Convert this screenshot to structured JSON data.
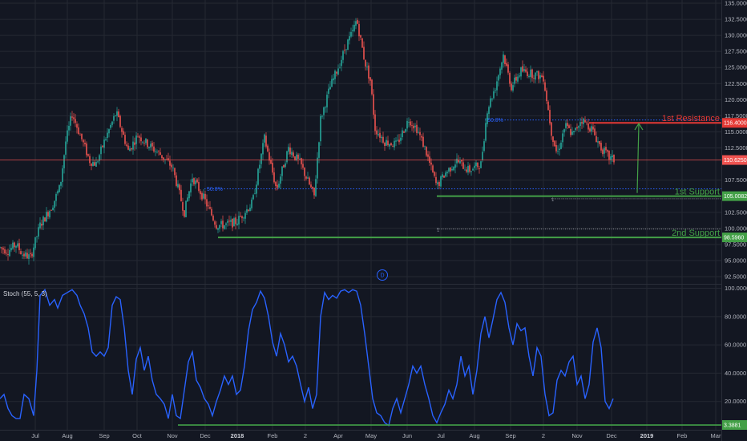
{
  "colors": {
    "background": "#131722",
    "grid": "#242833",
    "up": "#26a69a",
    "down": "#ef5350",
    "stoch": "#2962ff",
    "resistance": "#e53935",
    "support": "#43a047",
    "fib": "#2962ff",
    "current_price": "#ef5350"
  },
  "chart_data": [
    {
      "type": "candlestick",
      "title": "",
      "x_ticks": [
        "Jul",
        "Aug",
        "Sep",
        "Oct",
        "Nov",
        "Dec",
        "2018",
        "Feb",
        "2",
        "Apr",
        "May",
        "Jun",
        "Jul",
        "Aug",
        "Sep",
        "2",
        "Nov",
        "Dec",
        "2019",
        "Feb",
        "Mar"
      ],
      "y_ticks": [
        "135.0000",
        "132.5000",
        "130.0000",
        "127.5000",
        "125.0000",
        "122.5000",
        "120.0000",
        "117.5000",
        "115.0000",
        "112.5000",
        "107.5000",
        "102.5000",
        "100.0000",
        "97.5000",
        "95.0000",
        "92.5000"
      ],
      "ylim": [
        91.5,
        135.5
      ],
      "price_path": [
        {
          "t": 0,
          "p": 97.0
        },
        {
          "t": 10,
          "p": 96.5
        },
        {
          "t": 20,
          "p": 97.5
        },
        {
          "t": 28,
          "p": 96.0
        },
        {
          "t": 38,
          "p": 95.5
        },
        {
          "t": 50,
          "p": 100.5
        },
        {
          "t": 65,
          "p": 103.5
        },
        {
          "t": 75,
          "p": 106.5
        },
        {
          "t": 82,
          "p": 113.5
        },
        {
          "t": 90,
          "p": 117.8
        },
        {
          "t": 100,
          "p": 114.5
        },
        {
          "t": 112,
          "p": 110.5
        },
        {
          "t": 120,
          "p": 110.0
        },
        {
          "t": 130,
          "p": 113.5
        },
        {
          "t": 145,
          "p": 118.0
        },
        {
          "t": 160,
          "p": 112.0
        },
        {
          "t": 172,
          "p": 114.5
        },
        {
          "t": 185,
          "p": 113.0
        },
        {
          "t": 200,
          "p": 111.5
        },
        {
          "t": 215,
          "p": 109.5
        },
        {
          "t": 230,
          "p": 102.5
        },
        {
          "t": 240,
          "p": 108.0
        },
        {
          "t": 255,
          "p": 104.5
        },
        {
          "t": 270,
          "p": 100.5
        },
        {
          "t": 280,
          "p": 100.5
        },
        {
          "t": 295,
          "p": 101.0
        },
        {
          "t": 315,
          "p": 104.0
        },
        {
          "t": 330,
          "p": 114.0
        },
        {
          "t": 345,
          "p": 106.0
        },
        {
          "t": 360,
          "p": 112.5
        },
        {
          "t": 375,
          "p": 110.0
        },
        {
          "t": 392,
          "p": 105.0
        },
        {
          "t": 400,
          "p": 117.0
        },
        {
          "t": 412,
          "p": 122.0
        },
        {
          "t": 425,
          "p": 126.0
        },
        {
          "t": 432,
          "p": 128.5
        },
        {
          "t": 440,
          "p": 130.5
        },
        {
          "t": 445,
          "p": 132.5
        },
        {
          "t": 455,
          "p": 126.0
        },
        {
          "t": 462,
          "p": 123.0
        },
        {
          "t": 468,
          "p": 115.5
        },
        {
          "t": 480,
          "p": 113.5
        },
        {
          "t": 495,
          "p": 113.0
        },
        {
          "t": 510,
          "p": 117.0
        },
        {
          "t": 520,
          "p": 115.5
        },
        {
          "t": 530,
          "p": 112.5
        },
        {
          "t": 545,
          "p": 106.5
        },
        {
          "t": 555,
          "p": 108.5
        },
        {
          "t": 570,
          "p": 110.5
        },
        {
          "t": 585,
          "p": 109.0
        },
        {
          "t": 600,
          "p": 110.0
        },
        {
          "t": 608,
          "p": 118.5
        },
        {
          "t": 618,
          "p": 122.0
        },
        {
          "t": 628,
          "p": 127.0
        },
        {
          "t": 638,
          "p": 122.0
        },
        {
          "t": 650,
          "p": 124.5
        },
        {
          "t": 665,
          "p": 124.0
        },
        {
          "t": 678,
          "p": 123.5
        },
        {
          "t": 688,
          "p": 115.0
        },
        {
          "t": 695,
          "p": 111.5
        },
        {
          "t": 705,
          "p": 116.0
        },
        {
          "t": 715,
          "p": 114.5
        },
        {
          "t": 725,
          "p": 117.0
        },
        {
          "t": 738,
          "p": 115.5
        },
        {
          "t": 750,
          "p": 112.5
        },
        {
          "t": 760,
          "p": 111.0
        },
        {
          "t": 766,
          "p": 110.6
        }
      ],
      "current_price": {
        "label": "110.6250",
        "value": 110.625
      },
      "levels": [
        {
          "name": "1st Resistance",
          "label": "116.4000",
          "value": 116.4,
          "color": "#e53935",
          "from_t": 735
        },
        {
          "name": "1st Support",
          "label": "105.0082",
          "value": 105.0082,
          "color": "#43a047",
          "from_t": 545
        },
        {
          "name": "2nd Support",
          "label": "98.5960",
          "value": 98.596,
          "color": "#43a047",
          "from_t": 272
        }
      ],
      "fib_lines": [
        {
          "label": "50.0%",
          "value": 106.15,
          "from_t": 255,
          "to_t": 900,
          "color": "#2962ff"
        },
        {
          "label": "50.0%",
          "value": 116.85,
          "from_t": 605,
          "to_t": 900,
          "color": "#2962ff"
        }
      ],
      "dotted_lines": [
        {
          "label": "1",
          "value": 104.6,
          "from_t": 688,
          "to_t": 900
        },
        {
          "label": "1",
          "value": 99.9,
          "from_t": 545,
          "to_t": 900
        }
      ],
      "arrow": {
        "from_t": 797,
        "from_v": 105.5,
        "to_t": 797,
        "to_v": 116.3
      },
      "badge": "D"
    },
    {
      "type": "line",
      "title": "Stoch (55, 5, 3)",
      "y_ticks": [
        "100.0000",
        "80.0000",
        "60.0000",
        "40.0000",
        "20.0000"
      ],
      "ylim": [
        0,
        102
      ],
      "series": [
        {
          "values": [
            {
              "t": 0,
              "v": 22
            },
            {
              "t": 5,
              "v": 25
            },
            {
              "t": 10,
              "v": 15
            },
            {
              "t": 15,
              "v": 10
            },
            {
              "t": 20,
              "v": 8
            },
            {
              "t": 25,
              "v": 8
            },
            {
              "t": 30,
              "v": 25
            },
            {
              "t": 36,
              "v": 22
            },
            {
              "t": 42,
              "v": 10
            },
            {
              "t": 46,
              "v": 42
            },
            {
              "t": 50,
              "v": 95
            },
            {
              "t": 56,
              "v": 99
            },
            {
              "t": 62,
              "v": 88
            },
            {
              "t": 68,
              "v": 92
            },
            {
              "t": 72,
              "v": 86
            },
            {
              "t": 78,
              "v": 95
            },
            {
              "t": 84,
              "v": 97
            },
            {
              "t": 90,
              "v": 99
            },
            {
              "t": 96,
              "v": 95
            },
            {
              "t": 100,
              "v": 88
            },
            {
              "t": 105,
              "v": 82
            },
            {
              "t": 110,
              "v": 72
            },
            {
              "t": 115,
              "v": 55
            },
            {
              "t": 120,
              "v": 52
            },
            {
              "t": 125,
              "v": 55
            },
            {
              "t": 130,
              "v": 52
            },
            {
              "t": 135,
              "v": 58
            },
            {
              "t": 140,
              "v": 88
            },
            {
              "t": 145,
              "v": 94
            },
            {
              "t": 150,
              "v": 92
            },
            {
              "t": 155,
              "v": 72
            },
            {
              "t": 160,
              "v": 42
            },
            {
              "t": 165,
              "v": 25
            },
            {
              "t": 170,
              "v": 50
            },
            {
              "t": 175,
              "v": 58
            },
            {
              "t": 180,
              "v": 42
            },
            {
              "t": 185,
              "v": 52
            },
            {
              "t": 190,
              "v": 35
            },
            {
              "t": 195,
              "v": 25
            },
            {
              "t": 200,
              "v": 22
            },
            {
              "t": 205,
              "v": 18
            },
            {
              "t": 210,
              "v": 8
            },
            {
              "t": 215,
              "v": 25
            },
            {
              "t": 220,
              "v": 10
            },
            {
              "t": 225,
              "v": 8
            },
            {
              "t": 230,
              "v": 28
            },
            {
              "t": 235,
              "v": 48
            },
            {
              "t": 240,
              "v": 55
            },
            {
              "t": 245,
              "v": 35
            },
            {
              "t": 250,
              "v": 30
            },
            {
              "t": 255,
              "v": 22
            },
            {
              "t": 260,
              "v": 18
            },
            {
              "t": 265,
              "v": 10
            },
            {
              "t": 270,
              "v": 20
            },
            {
              "t": 275,
              "v": 28
            },
            {
              "t": 280,
              "v": 38
            },
            {
              "t": 285,
              "v": 32
            },
            {
              "t": 290,
              "v": 38
            },
            {
              "t": 295,
              "v": 25
            },
            {
              "t": 300,
              "v": 28
            },
            {
              "t": 305,
              "v": 45
            },
            {
              "t": 310,
              "v": 70
            },
            {
              "t": 315,
              "v": 85
            },
            {
              "t": 320,
              "v": 90
            },
            {
              "t": 325,
              "v": 98
            },
            {
              "t": 330,
              "v": 93
            },
            {
              "t": 335,
              "v": 80
            },
            {
              "t": 340,
              "v": 62
            },
            {
              "t": 345,
              "v": 52
            },
            {
              "t": 350,
              "v": 68
            },
            {
              "t": 355,
              "v": 60
            },
            {
              "t": 360,
              "v": 48
            },
            {
              "t": 365,
              "v": 52
            },
            {
              "t": 370,
              "v": 45
            },
            {
              "t": 375,
              "v": 32
            },
            {
              "t": 380,
              "v": 20
            },
            {
              "t": 385,
              "v": 30
            },
            {
              "t": 390,
              "v": 15
            },
            {
              "t": 395,
              "v": 25
            },
            {
              "t": 400,
              "v": 80
            },
            {
              "t": 405,
              "v": 97
            },
            {
              "t": 410,
              "v": 92
            },
            {
              "t": 415,
              "v": 95
            },
            {
              "t": 420,
              "v": 93
            },
            {
              "t": 425,
              "v": 98
            },
            {
              "t": 430,
              "v": 99
            },
            {
              "t": 435,
              "v": 97
            },
            {
              "t": 440,
              "v": 99
            },
            {
              "t": 445,
              "v": 98
            },
            {
              "t": 450,
              "v": 88
            },
            {
              "t": 455,
              "v": 68
            },
            {
              "t": 460,
              "v": 45
            },
            {
              "t": 465,
              "v": 22
            },
            {
              "t": 470,
              "v": 12
            },
            {
              "t": 475,
              "v": 10
            },
            {
              "t": 480,
              "v": 5
            },
            {
              "t": 485,
              "v": 3
            },
            {
              "t": 490,
              "v": 15
            },
            {
              "t": 495,
              "v": 22
            },
            {
              "t": 500,
              "v": 12
            },
            {
              "t": 505,
              "v": 22
            },
            {
              "t": 510,
              "v": 32
            },
            {
              "t": 515,
              "v": 45
            },
            {
              "t": 520,
              "v": 40
            },
            {
              "t": 525,
              "v": 45
            },
            {
              "t": 530,
              "v": 32
            },
            {
              "t": 535,
              "v": 22
            },
            {
              "t": 540,
              "v": 10
            },
            {
              "t": 545,
              "v": 5
            },
            {
              "t": 550,
              "v": 12
            },
            {
              "t": 555,
              "v": 18
            },
            {
              "t": 560,
              "v": 28
            },
            {
              "t": 565,
              "v": 22
            },
            {
              "t": 570,
              "v": 32
            },
            {
              "t": 575,
              "v": 52
            },
            {
              "t": 580,
              "v": 38
            },
            {
              "t": 585,
              "v": 45
            },
            {
              "t": 590,
              "v": 25
            },
            {
              "t": 595,
              "v": 42
            },
            {
              "t": 600,
              "v": 68
            },
            {
              "t": 605,
              "v": 80
            },
            {
              "t": 610,
              "v": 65
            },
            {
              "t": 615,
              "v": 78
            },
            {
              "t": 620,
              "v": 92
            },
            {
              "t": 625,
              "v": 97
            },
            {
              "t": 630,
              "v": 90
            },
            {
              "t": 635,
              "v": 72
            },
            {
              "t": 640,
              "v": 60
            },
            {
              "t": 645,
              "v": 75
            },
            {
              "t": 650,
              "v": 70
            },
            {
              "t": 655,
              "v": 72
            },
            {
              "t": 660,
              "v": 52
            },
            {
              "t": 665,
              "v": 38
            },
            {
              "t": 670,
              "v": 58
            },
            {
              "t": 675,
              "v": 52
            },
            {
              "t": 680,
              "v": 25
            },
            {
              "t": 685,
              "v": 10
            },
            {
              "t": 690,
              "v": 12
            },
            {
              "t": 695,
              "v": 35
            },
            {
              "t": 700,
              "v": 42
            },
            {
              "t": 705,
              "v": 38
            },
            {
              "t": 710,
              "v": 48
            },
            {
              "t": 715,
              "v": 52
            },
            {
              "t": 720,
              "v": 32
            },
            {
              "t": 725,
              "v": 38
            },
            {
              "t": 730,
              "v": 22
            },
            {
              "t": 735,
              "v": 32
            },
            {
              "t": 740,
              "v": 62
            },
            {
              "t": 745,
              "v": 72
            },
            {
              "t": 750,
              "v": 58
            },
            {
              "t": 755,
              "v": 20
            },
            {
              "t": 760,
              "v": 15
            },
            {
              "t": 765,
              "v": 22
            }
          ]
        }
      ],
      "levels": [
        {
          "label": "3.3881",
          "value": 3.3881,
          "color": "#43a047",
          "from_t": 222
        }
      ]
    }
  ]
}
